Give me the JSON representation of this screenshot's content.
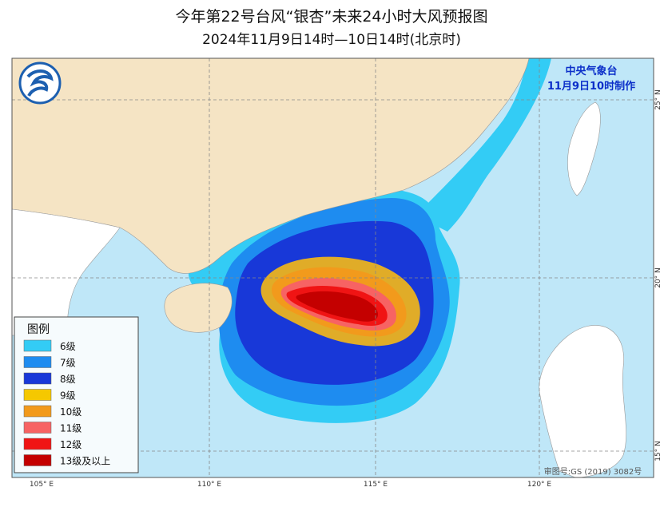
{
  "title": "今年第22号台风“银杏”未来24小时大风预报图",
  "subtitle": "2024年11月9日14时—10日14时(北京时)",
  "agency": "中央气象台",
  "issued": "11月9日10时制作",
  "legend": {
    "title": "图例",
    "items": [
      {
        "label": "6级",
        "color": "#33ccf5"
      },
      {
        "label": "7级",
        "color": "#1e8cf0"
      },
      {
        "label": "8级",
        "color": "#1838d8"
      },
      {
        "label": "9级",
        "color": "#f5c800"
      },
      {
        "label": "10级",
        "color": "#f29a1c"
      },
      {
        "label": "11级",
        "color": "#f76363"
      },
      {
        "label": "12级",
        "color": "#f01414"
      },
      {
        "label": "13级及以上",
        "color": "#c40000"
      }
    ]
  },
  "lon_labels": [
    "105° E",
    "110° E",
    "115° E",
    "120° E"
  ],
  "lat_labels": [
    "25° N",
    "20° N",
    "15° N"
  ],
  "approval": "审图号:GS (2019) 3082号"
}
